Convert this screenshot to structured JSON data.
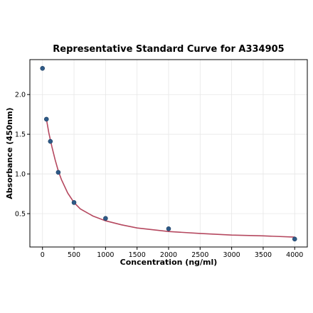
{
  "chart_data": {
    "type": "scatter",
    "title": "Representative Standard Curve for A334905",
    "xlabel": "Concentration (ng/ml)",
    "ylabel": "Absorbance (450nm)",
    "xlim": [
      -200,
      4200
    ],
    "ylim": [
      0.08,
      2.44
    ],
    "xticks": [
      0,
      500,
      1000,
      1500,
      2000,
      2500,
      3000,
      3500,
      4000
    ],
    "yticks": [
      0.5,
      1.0,
      1.5,
      2.0
    ],
    "xtick_labels": [
      "0",
      "500",
      "1000",
      "1500",
      "2000",
      "2500",
      "3000",
      "3500",
      "4000"
    ],
    "ytick_labels": [
      "0.5",
      "1.0",
      "1.5",
      "2.0"
    ],
    "grid": true,
    "series": [
      {
        "type": "scatter",
        "x": [
          0,
          62.5,
          125,
          250,
          500,
          1000,
          2000,
          4000
        ],
        "y": [
          2.33,
          1.69,
          1.41,
          1.02,
          0.64,
          0.44,
          0.31,
          0.18
        ],
        "color": "#2e5a87"
      },
      {
        "type": "line",
        "x": [
          62.5,
          100,
          150,
          200,
          250,
          300,
          400,
          500,
          600,
          800,
          1000,
          1250,
          1500,
          2000,
          2500,
          3000,
          3500,
          4000
        ],
        "y": [
          1.69,
          1.52,
          1.34,
          1.18,
          1.04,
          0.93,
          0.76,
          0.64,
          0.56,
          0.47,
          0.41,
          0.36,
          0.32,
          0.275,
          0.25,
          0.23,
          0.22,
          0.205
        ],
        "color": "#b5485f"
      }
    ]
  }
}
